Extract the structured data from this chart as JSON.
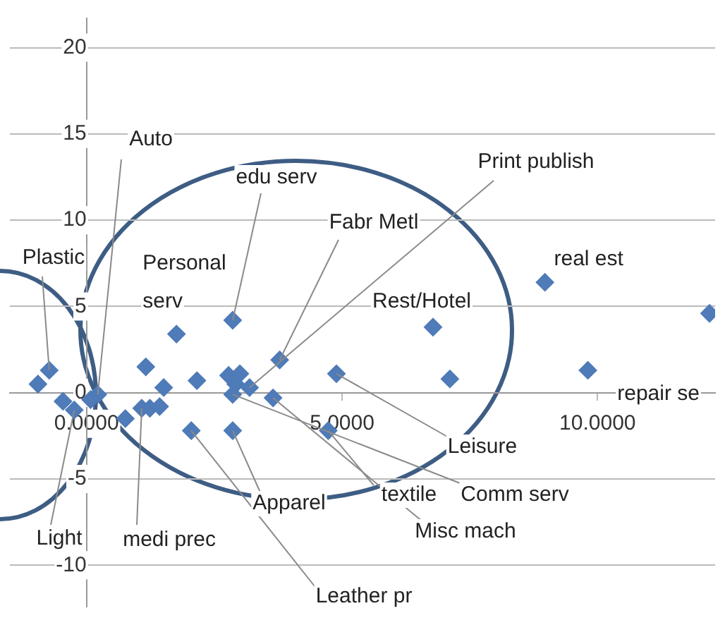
{
  "chart_data": {
    "type": "scatter",
    "marker": "diamond",
    "grid": "y",
    "xlim": [
      -1.5,
      12.3
    ],
    "ylim": [
      -12.4,
      21.7
    ],
    "xticks": [
      {
        "value": 0,
        "label": "0.0000"
      },
      {
        "value": 5,
        "label": "5.0000"
      },
      {
        "value": 10,
        "label": "10.0000"
      }
    ],
    "yticks": [
      -10,
      -5,
      0,
      5,
      10,
      15,
      20
    ],
    "series": [
      {
        "color": "#4f7bb8",
        "x": [
          2.86,
          1.76,
          1.16,
          3.78,
          2.16,
          1.51,
          2.78,
          3.0,
          2.92,
          3.19,
          2.86,
          3.65,
          4.89,
          2.05,
          2.86,
          1.08,
          1.24,
          1.43,
          0.76,
          0.22,
          0.08,
          -0.24,
          -0.46,
          -0.73,
          -0.86,
          -0.95,
          4.73,
          8.97,
          6.78,
          7.11,
          9.81,
          12.19
        ],
        "values": [
          4.2,
          3.4,
          1.5,
          1.9,
          0.7,
          0.3,
          1.0,
          1.1,
          0.5,
          0.3,
          -0.1,
          -0.3,
          1.1,
          -2.2,
          -2.2,
          -0.9,
          -0.9,
          -0.8,
          -1.5,
          -0.1,
          -0.4,
          -1.0,
          -0.5,
          1.3,
          null,
          0.5,
          -2.2,
          6.4,
          3.8,
          0.8,
          1.3,
          4.6
        ]
      }
    ],
    "annotations": [
      {
        "text": "Plastic",
        "x": -0.73,
        "y": 1.3
      },
      {
        "text": "Auto",
        "x": 0.22,
        "y": -0.1
      },
      {
        "text": "edu serv",
        "x": 2.86,
        "y": 4.2
      },
      {
        "text": "Print publish",
        "x": 3.19,
        "y": 0.3
      },
      {
        "text": "Fabr Metl",
        "x": 3.78,
        "y": 1.9
      },
      {
        "text": "Personal serv",
        "x": 1.76,
        "y": 3.4
      },
      {
        "text": "real est",
        "x": 8.97,
        "y": 6.4
      },
      {
        "text": "Rest/Hotel",
        "x": 6.78,
        "y": 3.8
      },
      {
        "text": "repair se",
        "x": 9.81,
        "y": 1.3
      },
      {
        "text": "Leisure",
        "x": 4.89,
        "y": 1.1
      },
      {
        "text": "textile",
        "x": 4.73,
        "y": -2.2
      },
      {
        "text": "Comm serv",
        "x": 2.86,
        "y": -0.1
      },
      {
        "text": "Misc mach",
        "x": 3.65,
        "y": -0.3
      },
      {
        "text": "Apparel",
        "x": 2.86,
        "y": -2.2
      },
      {
        "text": "Leather pr",
        "x": 2.05,
        "y": -2.2
      },
      {
        "text": "Light",
        "x": -0.24,
        "y": -1.0
      },
      {
        "text": "medi prec",
        "x": 1.08,
        "y": -0.9
      }
    ]
  }
}
